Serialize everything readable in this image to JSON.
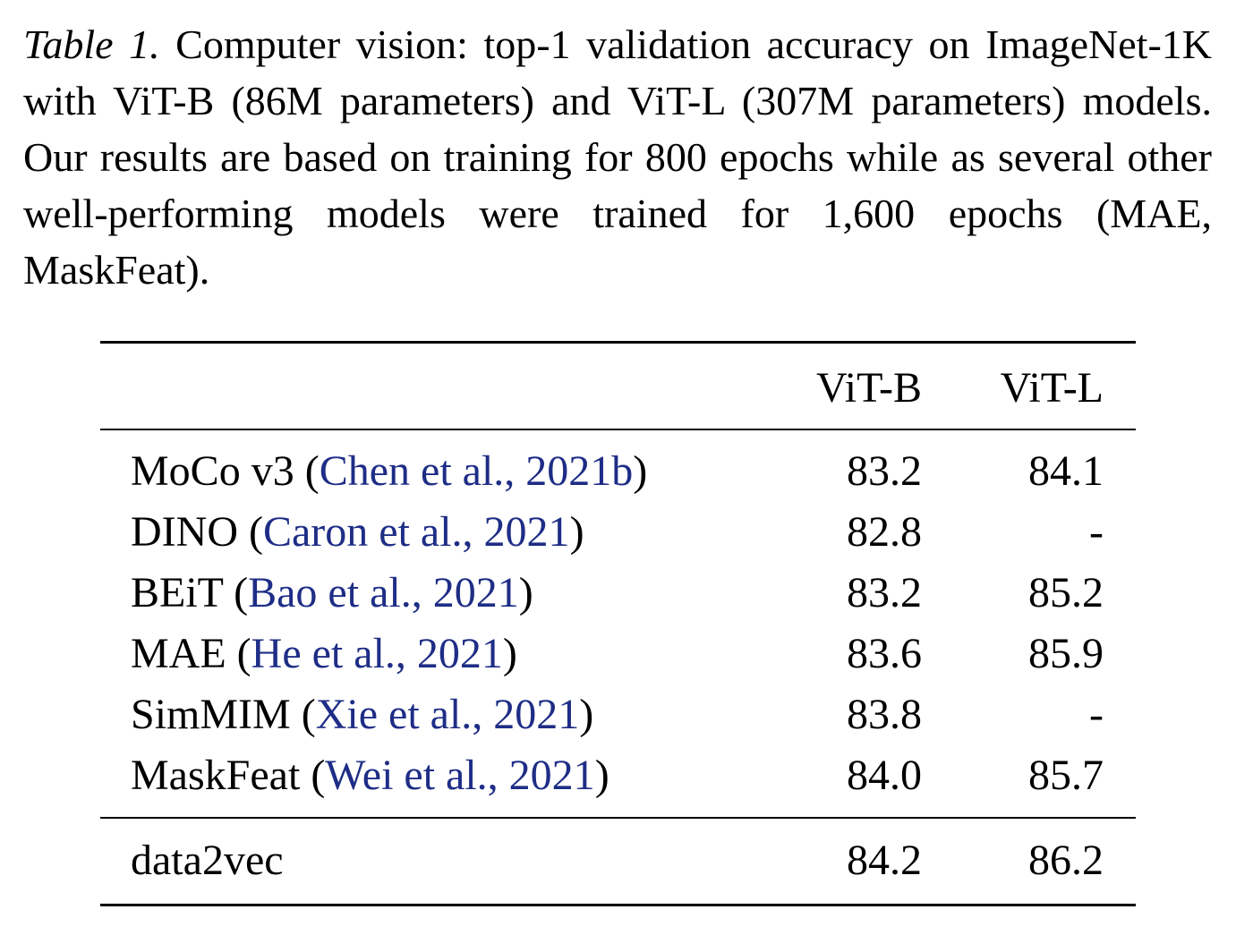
{
  "caption": {
    "label": "Table 1.",
    "text": "Computer vision: top-1 validation accuracy on ImageNet-1K with ViT-B (86M parameters) and ViT-L (307M parameters) models. Our results are based on training for 800 epochs while as several other well-performing models were trained for 1,600 epochs (MAE, MaskFeat)."
  },
  "table": {
    "headers": [
      "ViT-B",
      "ViT-L"
    ],
    "rows": [
      {
        "method": "MoCo v3",
        "citation": "Chen et al., 2021b",
        "vit_b": "83.2",
        "vit_l": "84.1"
      },
      {
        "method": "DINO",
        "citation": "Caron et al., 2021",
        "vit_b": "82.8",
        "vit_l": "-"
      },
      {
        "method": "BEiT",
        "citation": "Bao et al., 2021",
        "vit_b": "83.2",
        "vit_l": "85.2"
      },
      {
        "method": "MAE",
        "citation": "He et al., 2021",
        "vit_b": "83.6",
        "vit_l": "85.9"
      },
      {
        "method": "SimMIM",
        "citation": "Xie et al., 2021",
        "vit_b": "83.8",
        "vit_l": "-"
      },
      {
        "method": "MaskFeat",
        "citation": "Wei et al., 2021",
        "vit_b": "84.0",
        "vit_l": "85.7"
      }
    ],
    "final_row": {
      "method": "data2vec",
      "vit_b": "84.2",
      "vit_l": "86.2"
    }
  },
  "colors": {
    "citation": "#1e2d86",
    "text": "#000000",
    "background": "#ffffff"
  }
}
